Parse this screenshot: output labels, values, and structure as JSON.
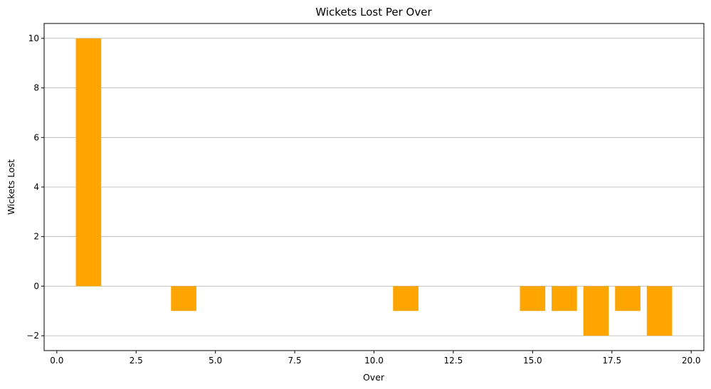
{
  "chart_data": {
    "type": "bar",
    "title": "Wickets Lost Per Over",
    "xlabel": "Over",
    "ylabel": "Wickets Lost",
    "x": [
      1,
      4,
      11,
      15,
      16,
      17,
      18,
      19
    ],
    "values": [
      10,
      -1,
      -1,
      -1,
      -1,
      -2,
      -1,
      -2
    ],
    "bar_color": "#ffa500",
    "xlim": [
      -0.4,
      20.4
    ],
    "ylim": [
      -2.6,
      10.6
    ],
    "x_ticks": [
      0.0,
      2.5,
      5.0,
      7.5,
      10.0,
      12.5,
      15.0,
      17.5,
      20.0
    ],
    "x_tick_labels": [
      "0.0",
      "2.5",
      "5.0",
      "7.5",
      "10.0",
      "12.5",
      "15.0",
      "17.5",
      "20.0"
    ],
    "y_ticks": [
      -2,
      0,
      2,
      4,
      6,
      8,
      10
    ],
    "y_tick_labels": [
      "−2",
      "0",
      "2",
      "4",
      "6",
      "8",
      "10"
    ],
    "grid": "y",
    "grid_color": "#b0b0b0",
    "bar_width": 0.8
  }
}
